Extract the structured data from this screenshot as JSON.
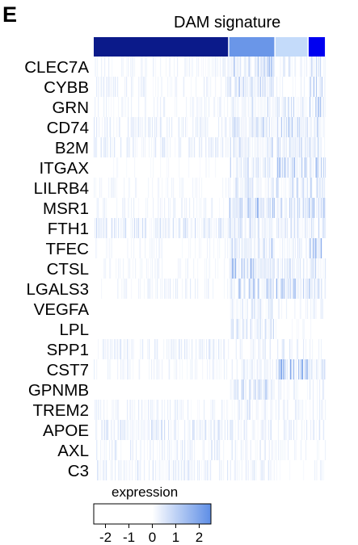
{
  "panel_label": "E",
  "chart_data": {
    "type": "heatmap",
    "title": "DAM signature",
    "genes": [
      "CLEC7A",
      "CYBB",
      "GRN",
      "CD74",
      "B2M",
      "ITGAX",
      "LILRB4",
      "MSR1",
      "FTH1",
      "TFEC",
      "CTSL",
      "LGALS3",
      "VEGFA",
      "LPL",
      "SPP1",
      "CST7",
      "GPNMB",
      "TREM2",
      "APOE",
      "AXL",
      "C3"
    ],
    "cluster_groups": [
      {
        "color": "#0b1a8a",
        "fraction": 0.513
      },
      {
        "color": "#6a96e8",
        "fraction": 0.172
      },
      {
        "color": "#c4dbfa",
        "fraction": 0.122
      },
      {
        "color": "#0000f0",
        "fraction": 0.062
      }
    ],
    "approx_mean_expression": [
      [
        0.2,
        0.9,
        0.4,
        0.6
      ],
      [
        0.25,
        0.7,
        0.2,
        0.7
      ],
      [
        0.2,
        0.6,
        0.5,
        0.8
      ],
      [
        0.3,
        0.6,
        0.8,
        0.7
      ],
      [
        0.3,
        0.5,
        0.5,
        0.6
      ],
      [
        0.1,
        0.6,
        0.9,
        0.9
      ],
      [
        0.15,
        0.6,
        0.6,
        0.5
      ],
      [
        0.2,
        1.2,
        0.6,
        0.9
      ],
      [
        0.45,
        0.5,
        0.5,
        0.5
      ],
      [
        0.15,
        0.8,
        0.3,
        1.2
      ],
      [
        0.15,
        1.2,
        0.4,
        0.6
      ],
      [
        0.25,
        0.8,
        1.0,
        1.0
      ],
      [
        0.05,
        0.5,
        0.2,
        0.3
      ],
      [
        0.05,
        0.5,
        0.1,
        0.1
      ],
      [
        0.3,
        0.3,
        0.3,
        0.2
      ],
      [
        0.2,
        0.3,
        1.1,
        0.5
      ],
      [
        0.05,
        0.6,
        0.2,
        0.3
      ],
      [
        0.25,
        0.4,
        0.3,
        0.3
      ],
      [
        0.4,
        0.4,
        0.3,
        0.3
      ],
      [
        0.3,
        0.3,
        0.2,
        0.2
      ],
      [
        0.35,
        0.3,
        0.1,
        0.2
      ]
    ],
    "legend": {
      "title": "expression",
      "ticks": [
        "-2",
        "-1",
        "0",
        "1",
        "2"
      ],
      "range": [
        -2.5,
        2.5
      ],
      "color_low": "#ffffff",
      "color_mid": "#ffffff",
      "color_high": "#5e8ee6"
    }
  }
}
